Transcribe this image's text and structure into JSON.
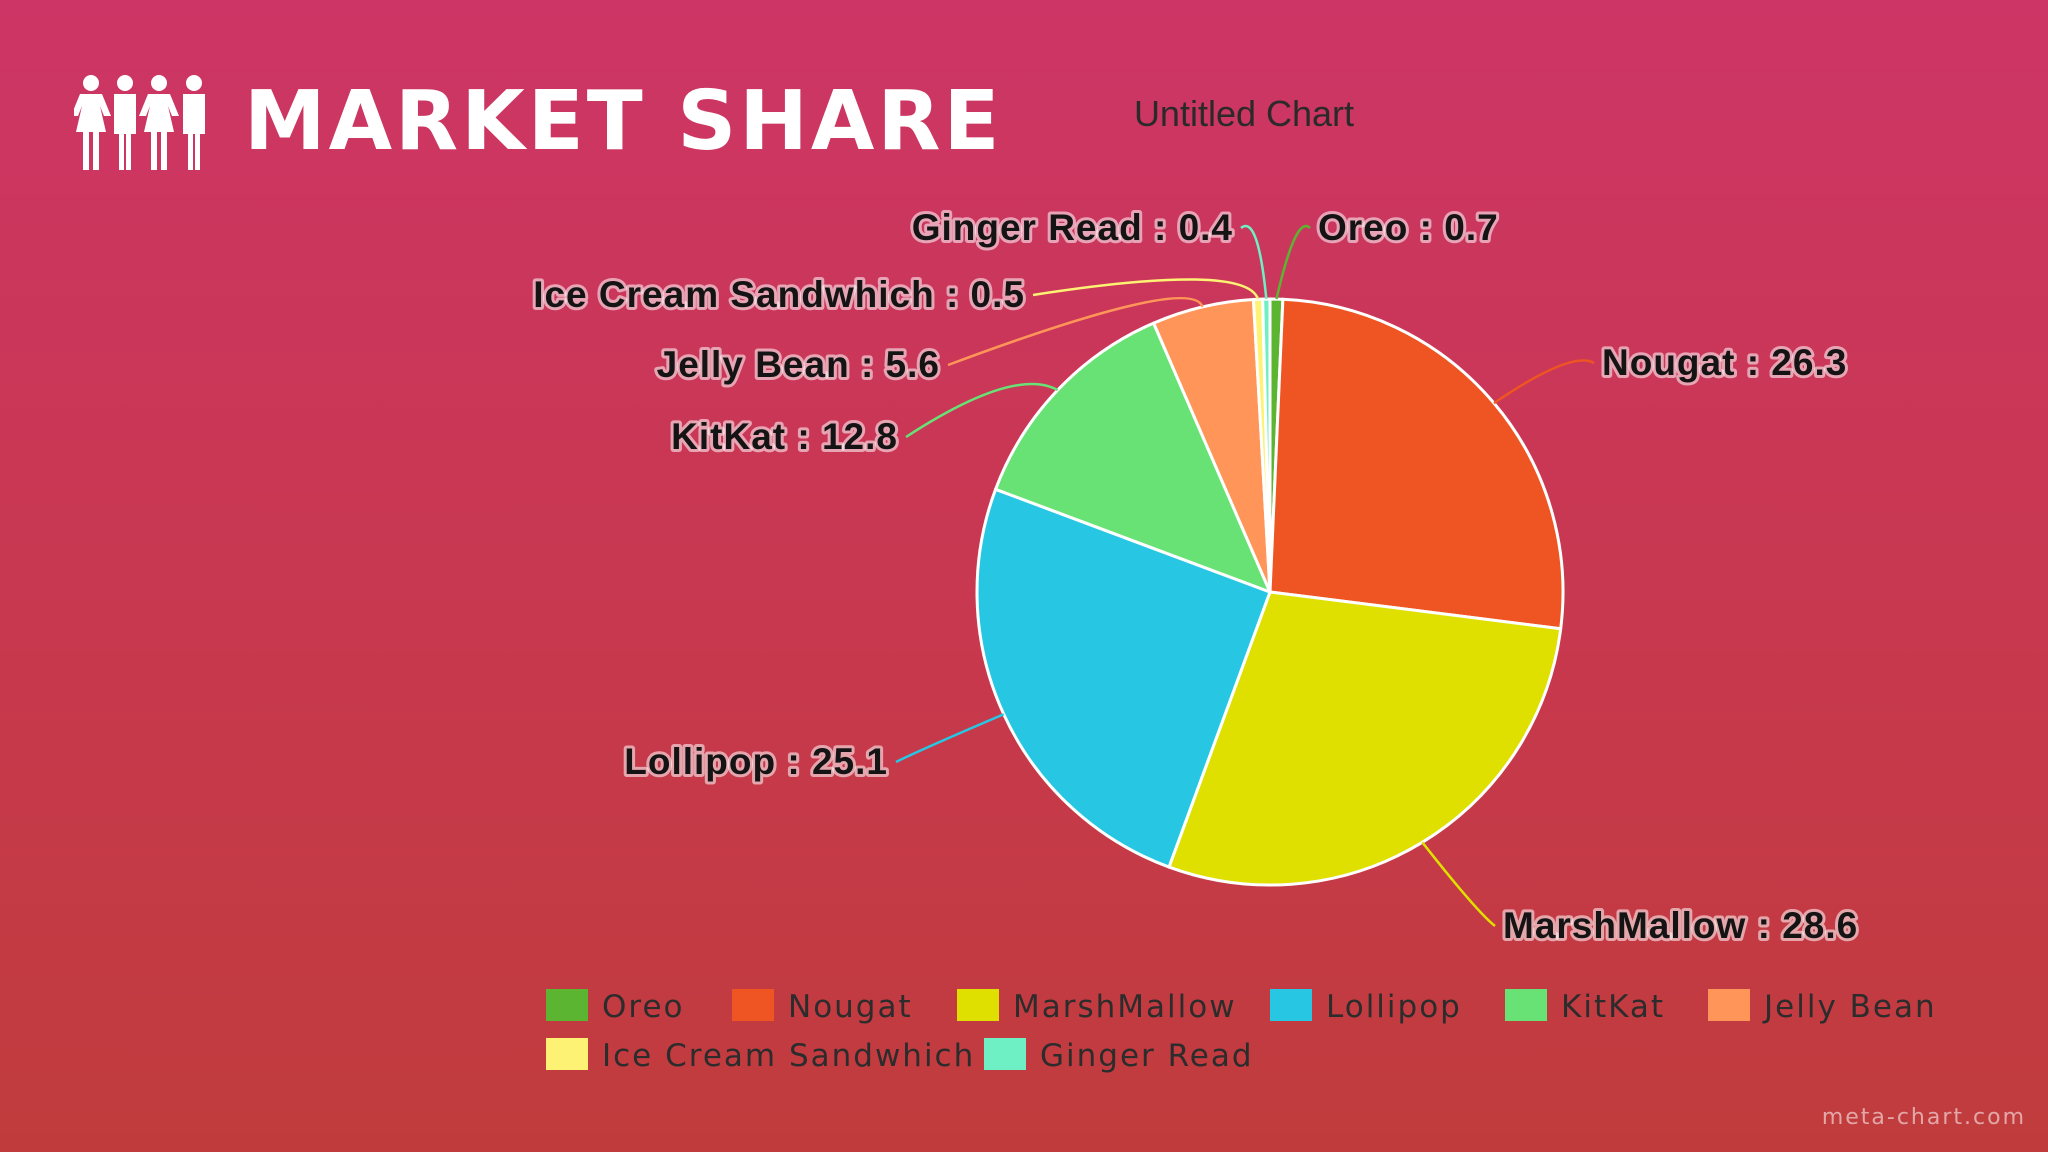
{
  "header": {
    "title": "MARKET SHARE",
    "icon": "people-group-icon"
  },
  "footer": {
    "watermark": "meta-chart.com"
  },
  "chart_data": {
    "type": "pie",
    "title": "Untitled Chart",
    "slices": [
      {
        "name": "Oreo",
        "value": 0.7,
        "color": "#5cb531"
      },
      {
        "name": "Nougat",
        "value": 26.3,
        "color": "#ee5523"
      },
      {
        "name": "MarshMallow",
        "value": 28.6,
        "color": "#dfe000"
      },
      {
        "name": "Lollipop",
        "value": 25.1,
        "color": "#27c7e4"
      },
      {
        "name": "KitKat",
        "value": 12.8,
        "color": "#68e275"
      },
      {
        "name": "Jelly Bean",
        "value": 5.6,
        "color": "#ff9558"
      },
      {
        "name": "Ice Cream Sandwhich",
        "value": 0.5,
        "color": "#fdf274"
      },
      {
        "name": "Ginger Read",
        "value": 0.4,
        "color": "#6ff0c4"
      }
    ],
    "data_labels": [
      "Oreo : 0.7",
      "Nougat : 26.3",
      "MarshMallow : 28.6",
      "Lollipop : 25.1",
      "KitKat : 12.8",
      "Jelly Bean : 5.6",
      "Ice Cream Sandwhich : 0.5",
      "Ginger Read : 0.4"
    ],
    "legend_position": "bottom"
  }
}
